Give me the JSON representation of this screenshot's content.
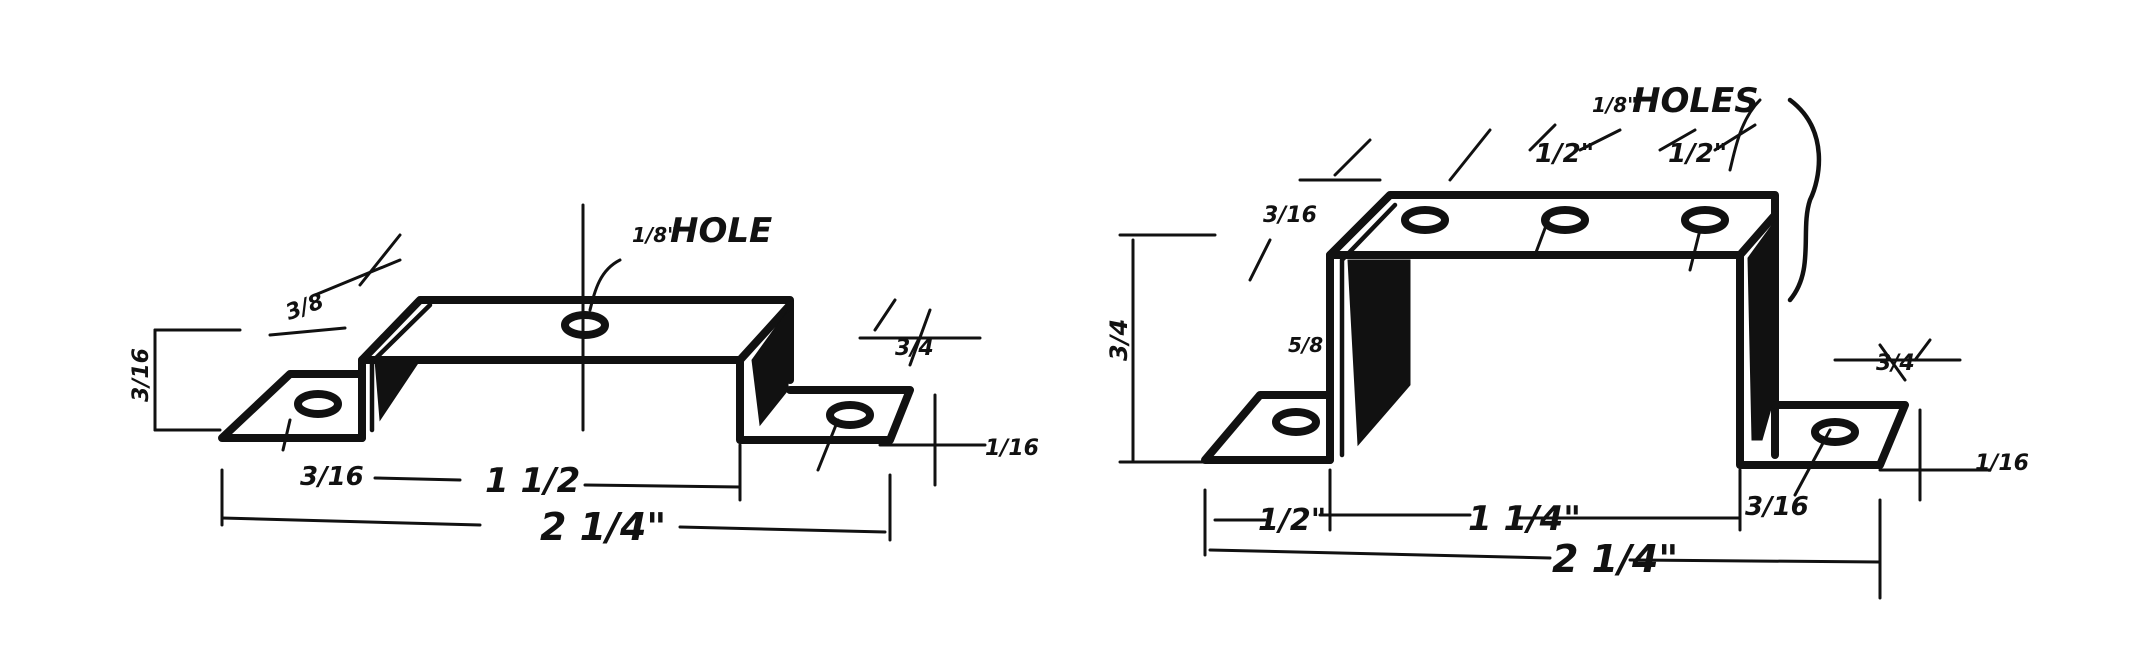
{
  "left_bracket": {
    "hole_label": "HOLE",
    "hole_size": "1/8\"",
    "thickness_label": "1/16",
    "height_label": "3/16",
    "hole_offset_label": "3/16",
    "depth_label": "3/8",
    "width_label": "3/4",
    "inner_span_label": "1 1/2",
    "overall_span_label": "2 1/4\""
  },
  "right_bracket": {
    "holes_label": "HOLES",
    "hole_size": "1/8\"",
    "pitch_label_1": "1/2\"",
    "pitch_label_2": "1/2\"",
    "depth_label": "3/16",
    "height_label": "3/4",
    "inner_height_label": "5/8",
    "flange_width_label": "1/2\"",
    "thickness_label": "1/16",
    "hole_offset_label": "3/16",
    "tab_width_label": "3/4",
    "inner_span_label": "1 1/4\"",
    "overall_span_label": "2 1/4\""
  }
}
